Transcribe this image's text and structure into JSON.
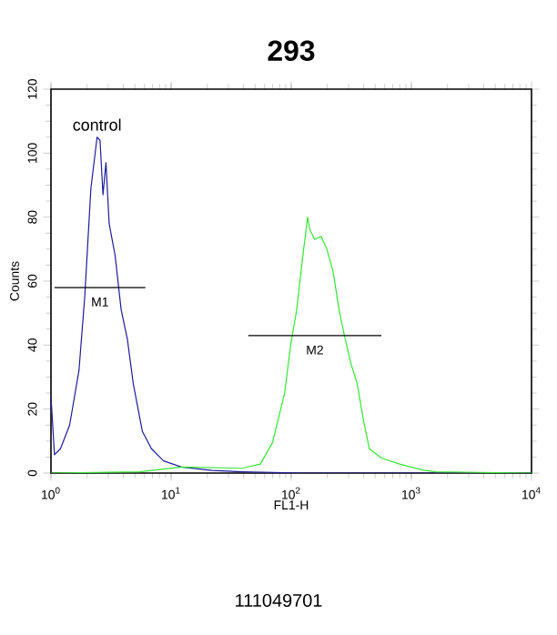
{
  "chart_data": {
    "type": "line",
    "title": "293",
    "xlabel": "FL1-H",
    "ylabel": "Counts",
    "log": "x",
    "xlim": [
      1,
      10000
    ],
    "ylim": [
      0,
      120
    ],
    "xticks": [
      {
        "value": 1,
        "label": "10$^{0}$"
      },
      {
        "value": 10,
        "label": "10$^{1}$"
      },
      {
        "value": 100,
        "label": "10$^{2}$"
      },
      {
        "value": 1000,
        "label": "10$^{3}$"
      },
      {
        "value": 10000,
        "label": "10$^{4}$"
      }
    ],
    "yticks": [
      0,
      20,
      40,
      60,
      80,
      100,
      120
    ],
    "series": [
      {
        "name": "control",
        "color": "#1c1c9c",
        "x": [
          1,
          1.07,
          1.2,
          1.43,
          1.71,
          1.91,
          2.15,
          2.42,
          2.56,
          2.71,
          2.87,
          3.05,
          3.42,
          3.84,
          4.32,
          4.84,
          5.77,
          6.86,
          8.65,
          12.2,
          21.9,
          38.9,
          126,
          10000
        ],
        "values": [
          24,
          5.7,
          7.6,
          15,
          32,
          55,
          89,
          105,
          104,
          87,
          97,
          78,
          68,
          51,
          42,
          28,
          13,
          7.6,
          3.8,
          1.9,
          0.8,
          0.4,
          0,
          0
        ]
      },
      {
        "color": "#33e633",
        "x": [
          1,
          5.44,
          12.2,
          38.9,
          55.4,
          69.8,
          88.1,
          98.9,
          111,
          125,
          137,
          143,
          157,
          177,
          198,
          223,
          250,
          281,
          315,
          354,
          397,
          447,
          563,
          798,
          1268,
          1600,
          10000
        ],
        "values": [
          0,
          0.4,
          1.9,
          1.5,
          2.8,
          9.5,
          25,
          40,
          51,
          68,
          80,
          76,
          73,
          74,
          70,
          63,
          51,
          42,
          34,
          28,
          17,
          7.6,
          4.7,
          2.8,
          0.9,
          0.4,
          0
        ]
      },
      {
        "name": "M1",
        "color": "#000000",
        "x": [
          1.07,
          6.11
        ],
        "values": [
          58,
          58
        ]
      },
      {
        "name": "M2",
        "color": "#000000",
        "x": [
          43.9,
          563
        ],
        "values": [
          43,
          43
        ]
      }
    ],
    "annotations": [
      "111049701"
    ]
  }
}
